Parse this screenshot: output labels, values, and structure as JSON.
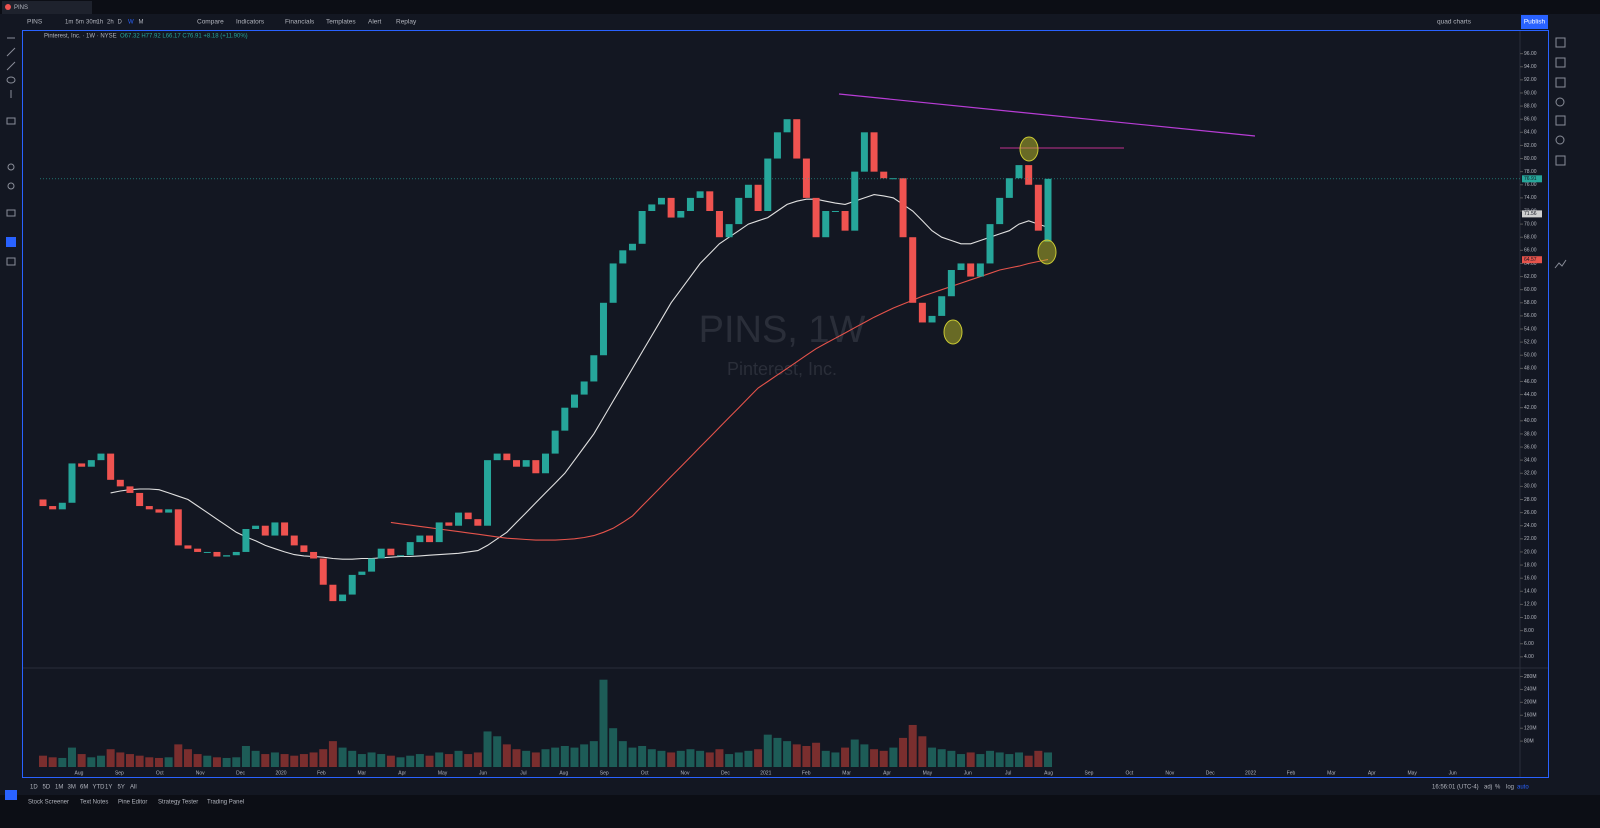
{
  "window": {
    "tab": "PINS"
  },
  "toolbar": {
    "symbol": "PINS",
    "intervals": [
      "1m",
      "5m",
      "30m",
      "1h",
      "2h",
      "D",
      "W",
      "M"
    ],
    "compare": "Compare",
    "indicators": "Indicators",
    "financials": "Financials",
    "templates": "Templates",
    "alert": "Alert",
    "replay": "Replay",
    "layout": "quad charts",
    "publish": "Publish"
  },
  "legend": {
    "name": "Pinterest, Inc. · 1W · NYSE",
    "ohlc": "O67.32 H77.92 L66.17 C76.91 +8.18 (+11.90%)"
  },
  "chart_data": {
    "type": "candlestick",
    "watermark_title": "PINS, 1W",
    "watermark_subtitle": "Pinterest, Inc.",
    "up_color": "#26a69a",
    "down_color": "#ef5350",
    "time_labels": [
      "Aug",
      "Sep",
      "Oct",
      "Nov",
      "Dec",
      "2020",
      "Feb",
      "Mar",
      "Apr",
      "May",
      "Jun",
      "Jul",
      "Aug",
      "Sep",
      "Oct",
      "Nov",
      "Dec",
      "2021",
      "Feb",
      "Mar",
      "Apr",
      "May",
      "Jun",
      "Jul",
      "Aug",
      "Sep",
      "Oct",
      "Nov",
      "Dec",
      "2022",
      "Feb",
      "Mar",
      "Apr",
      "May",
      "Jun"
    ],
    "open": [
      28,
      27,
      26.5,
      27.5,
      33.5,
      33,
      34,
      35,
      31,
      30,
      29,
      27,
      26.5,
      26,
      26.5,
      21,
      20.5,
      20,
      20,
      19.3,
      19.5,
      20,
      23.5,
      24,
      22.5,
      24.5,
      22.5,
      21,
      20,
      19,
      15,
      12.5,
      13.5,
      16.5,
      17,
      19,
      20.5,
      19.5,
      19.5,
      21.5,
      22.5,
      21.5,
      24.5,
      24,
      26,
      25,
      24,
      34,
      35,
      34,
      33,
      34,
      32,
      35,
      38.5,
      42,
      44,
      46,
      50,
      58,
      64,
      66,
      67,
      72,
      73,
      74,
      71,
      72,
      74,
      75,
      72,
      68,
      70,
      74,
      76,
      72,
      80,
      84,
      86,
      80,
      74,
      68,
      72,
      72,
      69,
      78,
      84,
      78,
      77,
      77,
      68,
      58,
      55,
      56,
      59,
      63,
      64,
      62,
      64,
      70,
      74,
      77,
      79,
      76,
      67.32
    ],
    "close": [
      27,
      26.5,
      27.5,
      33.5,
      33,
      34,
      35,
      31,
      30,
      29,
      27,
      26.5,
      26,
      26.5,
      21,
      20.5,
      20,
      20,
      19.3,
      19.5,
      20,
      23.5,
      24,
      22.5,
      24.5,
      22.5,
      21,
      20,
      19,
      15,
      12.5,
      13.5,
      16.5,
      17,
      19,
      20.5,
      19.5,
      19.5,
      21.5,
      22.5,
      21.5,
      24.5,
      24,
      26,
      25,
      24,
      34,
      35,
      34,
      33,
      34,
      32,
      35,
      38.5,
      42,
      44,
      46,
      50,
      58,
      64,
      66,
      67,
      72,
      73,
      74,
      71,
      72,
      74,
      75,
      72,
      68,
      70,
      74,
      76,
      72,
      80,
      84,
      86,
      80,
      74,
      68,
      72,
      72,
      69,
      78,
      84,
      78,
      77,
      77,
      68,
      58,
      55,
      56,
      59,
      63,
      64,
      62,
      64,
      70,
      74,
      77,
      79,
      76,
      69,
      76.91
    ],
    "moving_averages": [
      {
        "color": "#e0e0e0",
        "values": [
          null,
          null,
          null,
          null,
          null,
          null,
          null,
          29,
          29.3,
          29.5,
          29.6,
          29.6,
          29.5,
          29,
          28.5,
          28,
          27,
          26,
          25,
          24,
          23,
          22.3,
          21.7,
          21,
          20.5,
          20,
          19.6,
          19.4,
          19.3,
          19.2,
          19,
          18.9,
          18.9,
          19,
          19,
          19.1,
          19.2,
          19.3,
          19.3,
          19.4,
          19.5,
          19.6,
          19.7,
          19.8,
          20,
          20.2,
          21,
          22,
          23,
          24.5,
          26,
          27.5,
          29,
          30.5,
          32,
          34,
          36,
          38,
          40.5,
          43,
          45.5,
          48,
          50.5,
          53,
          55.5,
          58,
          60,
          62,
          64,
          65.5,
          67,
          68,
          69,
          70,
          70.5,
          71,
          72,
          73,
          73.5,
          73.8,
          73.8,
          73.5,
          73.2,
          73,
          73.5,
          74,
          74.5,
          74.3,
          74,
          73,
          72,
          70.5,
          69,
          68,
          67.5,
          67,
          67,
          67.5,
          68,
          68.5,
          69,
          70,
          70.5,
          70,
          69.5
        ]
      },
      {
        "color": "#e5534b",
        "values": [
          null,
          null,
          null,
          null,
          null,
          null,
          null,
          null,
          null,
          null,
          null,
          null,
          null,
          null,
          null,
          null,
          null,
          null,
          null,
          null,
          null,
          null,
          null,
          null,
          null,
          null,
          null,
          null,
          null,
          null,
          null,
          null,
          null,
          null,
          null,
          null,
          24.5,
          24.3,
          24.1,
          23.9,
          23.7,
          23.5,
          23.3,
          23.1,
          22.9,
          22.7,
          22.5,
          22.3,
          22.1,
          22,
          21.9,
          21.8,
          21.8,
          21.8,
          21.9,
          22,
          22.2,
          22.5,
          23,
          23.6,
          24.5,
          25.5,
          27,
          28.5,
          30,
          31.5,
          33,
          34.5,
          36,
          37.5,
          39,
          40.5,
          42,
          43.5,
          45,
          46,
          47,
          48,
          49,
          50,
          51,
          51.8,
          52.6,
          53.4,
          54.2,
          55,
          55.8,
          56.5,
          57.2,
          57.8,
          58.4,
          59,
          59.5,
          60,
          60.5,
          61,
          61.5,
          62,
          62.5,
          63,
          63.3,
          63.6,
          64,
          64.3,
          64.6
        ]
      }
    ],
    "ylim": [
      2.3,
      99.3
    ],
    "yticks": [
      {
        "value": 4,
        "label": "4.00"
      },
      {
        "value": 6,
        "label": "6.00"
      },
      {
        "value": 8,
        "label": "8.00"
      },
      {
        "value": 10,
        "label": "10.00"
      },
      {
        "value": 12,
        "label": "12.00"
      },
      {
        "value": 14,
        "label": "14.00"
      },
      {
        "value": 16,
        "label": "16.00"
      },
      {
        "value": 18,
        "label": "18.00"
      },
      {
        "value": 20,
        "label": "20.00"
      },
      {
        "value": 22,
        "label": "22.00"
      },
      {
        "value": 24,
        "label": "24.00"
      },
      {
        "value": 26,
        "label": "26.00"
      },
      {
        "value": 28,
        "label": "28.00"
      },
      {
        "value": 30,
        "label": "30.00"
      },
      {
        "value": 32,
        "label": "32.00"
      },
      {
        "value": 34,
        "label": "34.00"
      },
      {
        "value": 36,
        "label": "36.00"
      },
      {
        "value": 38,
        "label": "38.00"
      },
      {
        "value": 40,
        "label": "40.00"
      },
      {
        "value": 42,
        "label": "42.00"
      },
      {
        "value": 44,
        "label": "44.00"
      },
      {
        "value": 46,
        "label": "46.00"
      },
      {
        "value": 48,
        "label": "48.00"
      },
      {
        "value": 50,
        "label": "50.00"
      },
      {
        "value": 52,
        "label": "52.00"
      },
      {
        "value": 54,
        "label": "54.00"
      },
      {
        "value": 56,
        "label": "56.00"
      },
      {
        "value": 58,
        "label": "58.00"
      },
      {
        "value": 60,
        "label": "60.00"
      },
      {
        "value": 62,
        "label": "62.00"
      },
      {
        "value": 64,
        "label": "64.00"
      },
      {
        "value": 66,
        "label": "66.00"
      },
      {
        "value": 68,
        "label": "68.00"
      },
      {
        "value": 70,
        "label": "70.00"
      },
      {
        "value": 72,
        "label": "72.00"
      },
      {
        "value": 74,
        "label": "74.00"
      },
      {
        "value": 76,
        "label": "76.00"
      },
      {
        "value": 78,
        "label": "78.00"
      },
      {
        "value": 80,
        "label": "80.00"
      },
      {
        "value": 82,
        "label": "82.00"
      },
      {
        "value": 84,
        "label": "84.00"
      },
      {
        "value": 86,
        "label": "86.00"
      },
      {
        "value": 88,
        "label": "88.00"
      },
      {
        "value": 90,
        "label": "90.00"
      },
      {
        "value": 92,
        "label": "92.00"
      },
      {
        "value": 94,
        "label": "94.00"
      },
      {
        "value": 96,
        "label": "96.00"
      }
    ],
    "price_tags": [
      {
        "value": 76.91,
        "label": "76.91",
        "color": "#26a69a"
      },
      {
        "value": 71.56,
        "label": "71.56",
        "color": "#d0d0d0"
      },
      {
        "value": 64.57,
        "label": "64.57",
        "color": "#e5534b"
      }
    ],
    "volume": {
      "ylim": [
        0,
        300
      ],
      "yticks": [
        {
          "value": 80,
          "label": "80M"
        },
        {
          "value": 120,
          "label": "120M"
        },
        {
          "value": 160,
          "label": "160M"
        },
        {
          "value": 200,
          "label": "200M"
        },
        {
          "value": 240,
          "label": "240M"
        },
        {
          "value": 280,
          "label": "280M"
        }
      ],
      "values": [
        35,
        30,
        28,
        60,
        40,
        30,
        35,
        55,
        45,
        40,
        35,
        30,
        28,
        30,
        70,
        55,
        40,
        35,
        30,
        28,
        30,
        65,
        50,
        40,
        45,
        40,
        35,
        40,
        45,
        55,
        80,
        60,
        50,
        40,
        45,
        40,
        35,
        30,
        35,
        40,
        35,
        45,
        40,
        50,
        40,
        45,
        110,
        95,
        70,
        55,
        50,
        45,
        55,
        60,
        65,
        60,
        70,
        80,
        270,
        120,
        80,
        60,
        65,
        55,
        50,
        45,
        50,
        55,
        50,
        45,
        55,
        40,
        45,
        50,
        55,
        100,
        90,
        80,
        70,
        65,
        75,
        50,
        45,
        60,
        85,
        70,
        55,
        50,
        60,
        90,
        130,
        95,
        60,
        55,
        50,
        40,
        45,
        40,
        50,
        45,
        40,
        45,
        35,
        50,
        45
      ]
    }
  },
  "bottom_bar": {
    "ranges": [
      "1D",
      "5D",
      "1M",
      "3M",
      "6M",
      "YTD",
      "1Y",
      "5Y",
      "All"
    ],
    "time": "16:56:01 (UTC-4)",
    "options": [
      "adj",
      "%",
      "log",
      "auto"
    ]
  },
  "tabs": [
    "Stock Screener",
    "Text Notes",
    "Pine Editor",
    "Strategy Tester",
    "Trading Panel"
  ]
}
